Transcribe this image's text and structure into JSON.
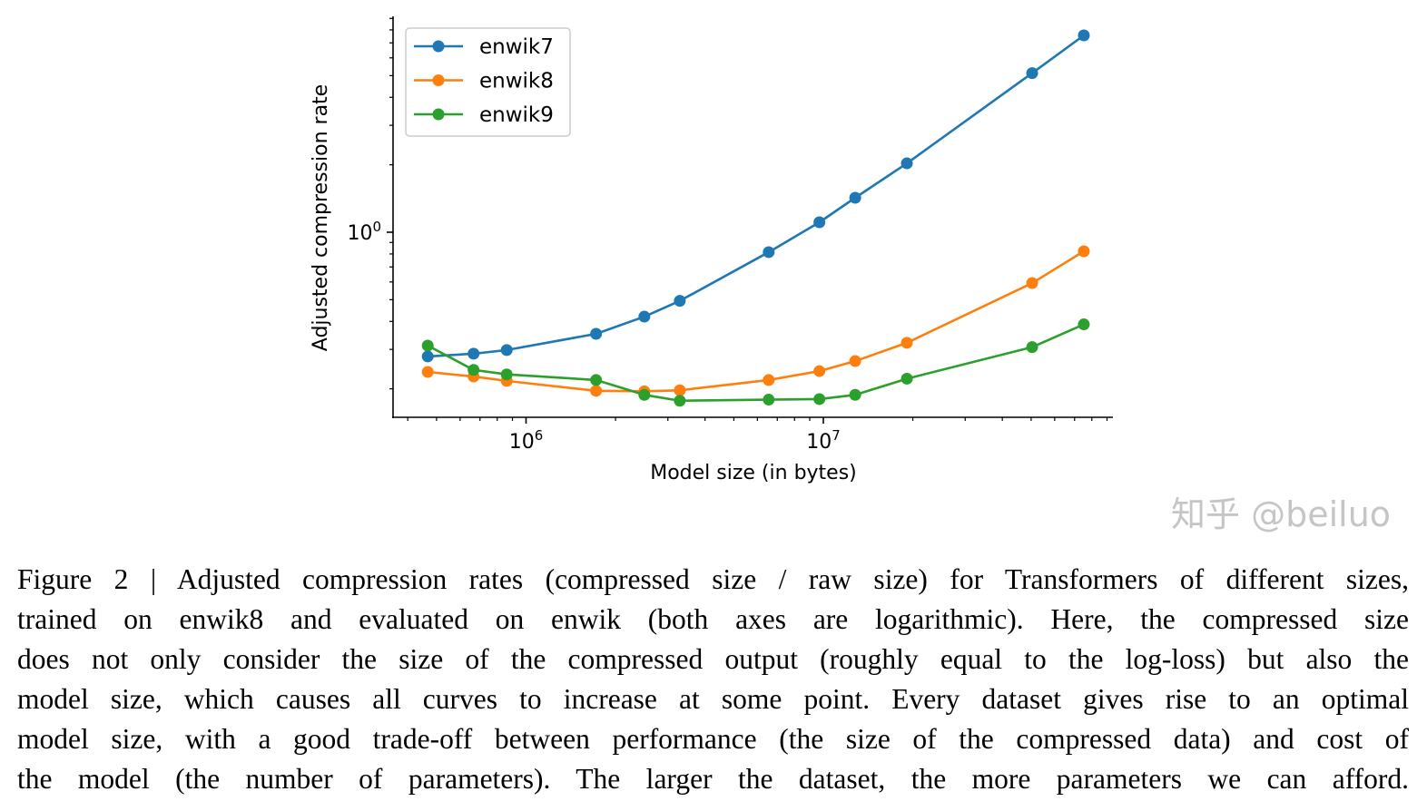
{
  "chart_data": {
    "type": "line",
    "title": "",
    "xlabel": "Model size (in bytes)",
    "ylabel": "Adjusted compression rate",
    "xscale": "log",
    "yscale": "log",
    "xlim": [
      355000,
      94000000
    ],
    "ylim": [
      0.149,
      9.2
    ],
    "x_ticks": [
      {
        "base": "10",
        "exp": "6",
        "value": 1000000
      },
      {
        "base": "10",
        "exp": "7",
        "value": 10000000
      }
    ],
    "y_ticks": [
      {
        "base": "10",
        "exp": "0",
        "value": 1
      }
    ],
    "grid": false,
    "legend_position": "top-left",
    "x": [
      467000,
      666000,
      861000,
      1720000,
      2500000,
      3290000,
      6550000,
      9700000,
      12800000,
      19100000,
      50400000,
      75200000
    ],
    "series": [
      {
        "name": "enwik7",
        "color": "#1f77b4",
        "values": [
          0.279,
          0.287,
          0.298,
          0.352,
          0.42,
          0.494,
          0.815,
          1.108,
          1.425,
          2.03,
          5.13,
          7.56
        ]
      },
      {
        "name": "enwik8",
        "color": "#ff7f0e",
        "values": [
          0.238,
          0.227,
          0.217,
          0.196,
          0.195,
          0.197,
          0.219,
          0.24,
          0.266,
          0.321,
          0.593,
          0.822
        ]
      },
      {
        "name": "enwik9",
        "color": "#2ca02c",
        "values": [
          0.312,
          0.243,
          0.232,
          0.219,
          0.188,
          0.177,
          0.179,
          0.18,
          0.188,
          0.222,
          0.307,
          0.388
        ]
      }
    ]
  },
  "caption": {
    "lines": [
      "Figure 2 | Adjusted compression rates (compressed size / raw size) for Transformers of different sizes,",
      "trained on enwik8 and evaluated on enwik (both axes are logarithmic). Here, the compressed size",
      "does not only consider the size of the compressed output (roughly equal to the log-loss) but also the",
      "model size, which causes all curves to increase at some point. Every dataset gives rise to an optimal",
      "model size, with a good trade-off between performance (the size of the compressed data) and cost of",
      "the model (the number of parameters). The larger the dataset, the more parameters we can afford."
    ]
  },
  "watermark": "知乎 @beiluo"
}
